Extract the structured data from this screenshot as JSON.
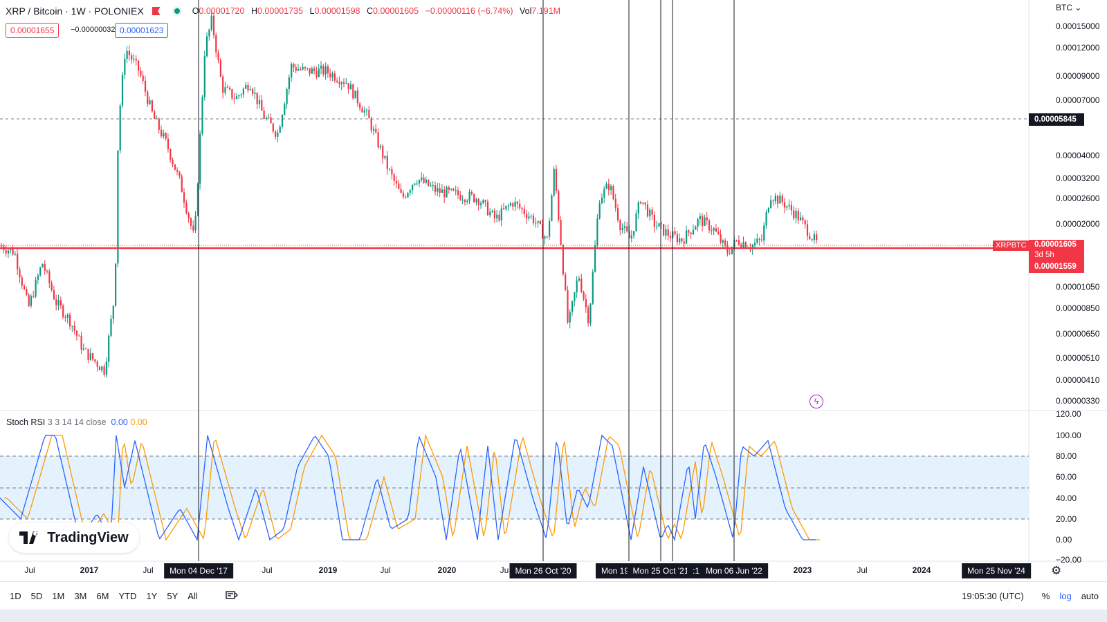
{
  "header": {
    "symbol": "XRP / Bitcoin · 1W · POLONIEX",
    "o_label": "O",
    "o_value": "0.00001720",
    "h_label": "H",
    "h_value": "0.00001735",
    "l_label": "L",
    "l_value": "0.00001598",
    "c_label": "C",
    "c_value": "0.00001605",
    "change": "−0.00000116 (−6.74%)",
    "vol_label": "Vol",
    "vol_value": "7.191M"
  },
  "trade": {
    "sell": "0.00001655",
    "spread": "−0.00000032",
    "buy": "0.00001623"
  },
  "price_axis": {
    "currency": "BTC",
    "ticks": [
      "0.00015000",
      "0.00012000",
      "0.00009000",
      "0.00007000",
      "0.00004000",
      "0.00003200",
      "0.00002600",
      "0.00002000",
      "0.00001050",
      "0.00000850",
      "0.00000650",
      "0.00000510",
      "0.00000410",
      "0.00000330"
    ],
    "dashed_level": "0.00005845",
    "symbol_tag": "XRPBTC",
    "last_price": "0.00001605",
    "countdown": "3d 5h",
    "level_tag": "0.00001559"
  },
  "stoch": {
    "label": "Stoch RSI",
    "params": "3 3 14 14 close",
    "k_value": "0.00",
    "d_value": "0.00",
    "axis": [
      "120.00",
      "100.00",
      "80.00",
      "60.00",
      "40.00",
      "20.00",
      "0.00",
      "−20.00"
    ]
  },
  "time_axis": {
    "labels": [
      {
        "t": "Jul",
        "x": 43,
        "bold": false
      },
      {
        "t": "2017",
        "x": 129,
        "bold": true
      },
      {
        "t": "Jul",
        "x": 214,
        "bold": false
      },
      {
        "t": "Jul",
        "x": 386,
        "bold": false
      },
      {
        "t": "2019",
        "x": 474,
        "bold": true
      },
      {
        "t": "Jul",
        "x": 557,
        "bold": false
      },
      {
        "t": "2020",
        "x": 646,
        "bold": true
      },
      {
        "t": "Ju",
        "x": 729,
        "bold": false
      },
      {
        "t": "2023",
        "x": 1160,
        "bold": true
      },
      {
        "t": "Jul",
        "x": 1246,
        "bold": false
      },
      {
        "t": "2024",
        "x": 1332,
        "bold": true
      }
    ],
    "markers": [
      {
        "t": "Mon 04 Dec '17",
        "x": 287
      },
      {
        "t": "Mon 26 Oct '20",
        "x": 785
      },
      {
        "t": "Mon 19",
        "x": 889
      },
      {
        "t": "Mon 25 Oct '21",
        "x": 955
      },
      {
        "t": ":1",
        "x": 1006
      },
      {
        "t": "Mon 06 Jun '22",
        "x": 1061
      },
      {
        "t": "Mon 25 Nov '24",
        "x": 1440
      }
    ]
  },
  "logo": "TradingView",
  "bottom": {
    "ranges": [
      "1D",
      "5D",
      "1M",
      "3M",
      "6M",
      "YTD",
      "1Y",
      "5Y",
      "All"
    ],
    "time": "19:05:30 (UTC)",
    "percent": "%",
    "log": "log",
    "auto": "auto"
  },
  "colors": {
    "up": "#089981",
    "down": "#f23645",
    "k": "#2962ff",
    "d": "#ff9800",
    "band": "#e3f2fd",
    "hline": "#f23645"
  }
}
